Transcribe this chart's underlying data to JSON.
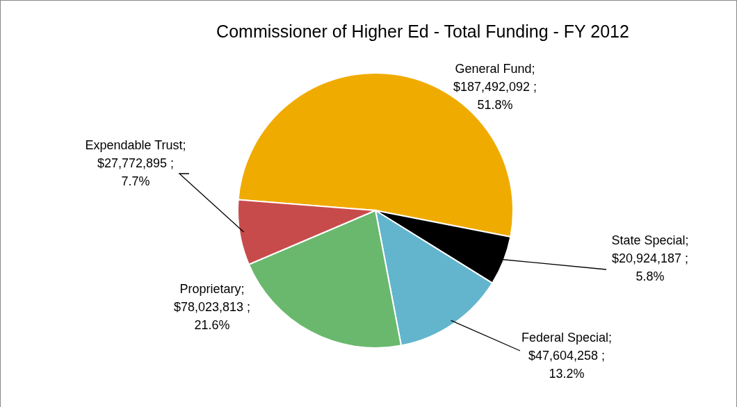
{
  "chart_data": {
    "type": "pie",
    "title": "Commissioner of Higher Ed - Total Funding - FY 2012",
    "categories": [
      "General Fund",
      "State Special",
      "Federal Special",
      "Proprietary",
      "Expendable Trust"
    ],
    "values": [
      187492092,
      20924187,
      47604258,
      78023813,
      27772895
    ],
    "colors": [
      "#f0ab00",
      "#000000",
      "#62b5cc",
      "#6ab86e",
      "#c84b4b"
    ],
    "value_labels": [
      "; $187,492,092 ; 51.8%",
      "; $20,924,187 ; 5.8%",
      "; $47,604,258 ; 13.2%",
      "; $78,023,813 ; 21.6%",
      "; $27,772,895 ; 7.7%"
    ]
  }
}
